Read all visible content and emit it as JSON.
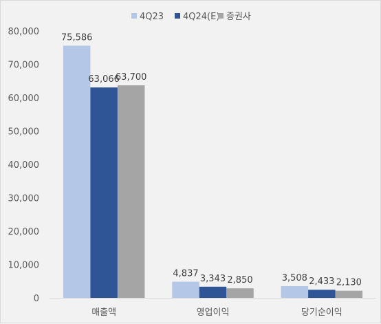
{
  "chart_data": {
    "type": "bar",
    "categories": [
      "매출액",
      "영업이익",
      "당기순이익"
    ],
    "series": [
      {
        "name": "4Q23",
        "color": "#b4c7e7",
        "values": [
          75586,
          4837,
          3508
        ]
      },
      {
        "name": "4Q24(E)",
        "color": "#2f5597",
        "values": [
          63066,
          3343,
          2433
        ]
      },
      {
        "name": "증권사",
        "color": "#a5a5a5",
        "values": [
          63700,
          2850,
          2130
        ]
      }
    ],
    "data_labels": [
      [
        "75,586",
        "4,837",
        "3,508"
      ],
      [
        "63,066",
        "3,343",
        "2,433"
      ],
      [
        "63,700",
        "2,850",
        "2,130"
      ]
    ],
    "y_ticks": [
      "0",
      "10,000",
      "20,000",
      "30,000",
      "40,000",
      "50,000",
      "60,000",
      "70,000",
      "80,000"
    ],
    "ylim": [
      0,
      80000
    ],
    "y_step": 10000,
    "grid": false,
    "legend_position": "top"
  }
}
